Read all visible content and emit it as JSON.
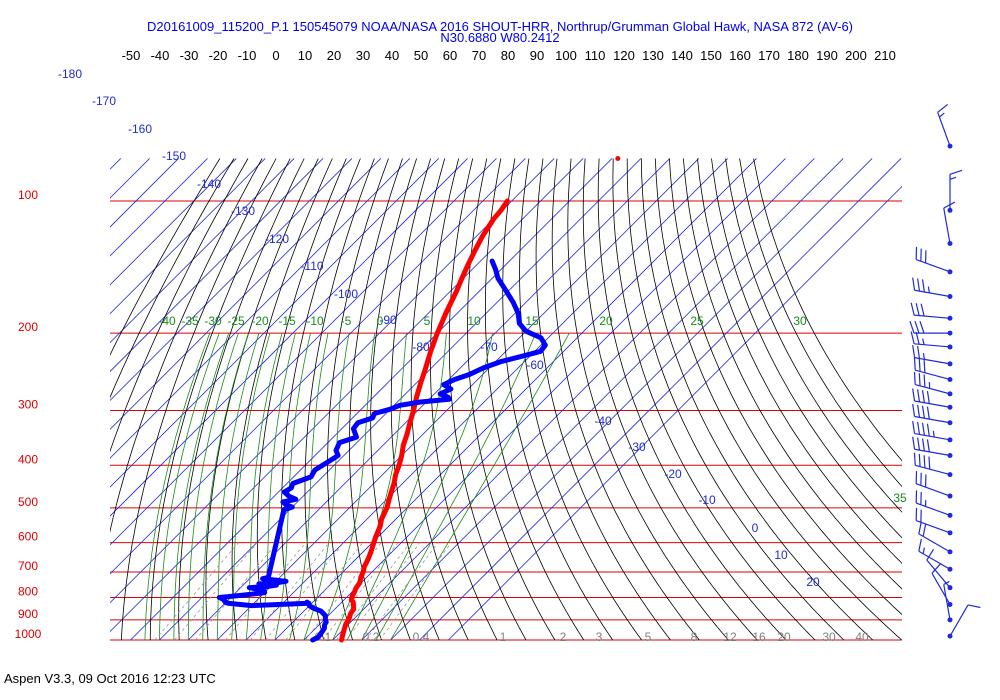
{
  "header": {
    "title": "D20161009_115200_P.1 150545079 NOAA/NASA 2016 SHOUT-HRR, Northrup/Grumman Global Hawk, NASA 872 (AV-6)",
    "location": "N30.6880 W80.2412"
  },
  "footer": {
    "version": "Aspen V3.3, 09 Oct 2016  12:23 UTC"
  },
  "chart_data": {
    "type": "skew-t",
    "title": "D20161009_115200_P.1 150545079 NOAA/NASA 2016 SHOUT-HRR, Northrup/Grumman Global Hawk, NASA 872 (AV-6)",
    "x_ticks": [
      "-50",
      "-40",
      "-30",
      "-20",
      "-10",
      "0",
      "10",
      "20",
      "30",
      "40",
      "50",
      "60",
      "70",
      "80",
      "90",
      "100",
      "110",
      "120",
      "130",
      "140",
      "150",
      "160",
      "170",
      "180",
      "190",
      "200",
      "210"
    ],
    "pressure_levels": [
      {
        "label": "100",
        "p": 100
      },
      {
        "label": "200",
        "p": 200
      },
      {
        "label": "300",
        "p": 300
      },
      {
        "label": "400",
        "p": 400
      },
      {
        "label": "500",
        "p": 500
      },
      {
        "label": "600",
        "p": 600
      },
      {
        "label": "700",
        "p": 700
      },
      {
        "label": "800",
        "p": 800
      },
      {
        "label": "900",
        "p": 900
      },
      {
        "label": "1000",
        "p": 1000
      }
    ],
    "isotherm_labels": [
      "-180",
      "-170",
      "-160",
      "-150",
      "-140",
      "-130",
      "-120",
      "-110",
      "-100",
      "-90",
      "-80",
      "-70",
      "-60",
      "-40",
      "-30",
      "-20",
      "-10",
      "0",
      "10",
      "20",
      "30"
    ],
    "dry_adiabat_labels": [
      "-40",
      "-35",
      "-30",
      "-25",
      "-20",
      "-15",
      "-10",
      "-5",
      "0",
      "5",
      "10",
      "15",
      "20",
      "25",
      "30",
      "35"
    ],
    "mixing_ratio_labels": [
      "0.1",
      "0.2",
      "0.4",
      "1",
      "2",
      "3",
      "5",
      "8",
      "12",
      "16",
      "20",
      "30",
      "40"
    ],
    "series": [
      {
        "color": "#ff0000",
        "points": [
          [
            1000,
            23
          ],
          [
            980,
            22
          ],
          [
            950,
            20.5
          ],
          [
            920,
            19
          ],
          [
            900,
            18.5
          ],
          [
            870,
            17
          ],
          [
            850,
            16.5
          ],
          [
            820,
            14
          ],
          [
            810,
            12.5
          ],
          [
            800,
            12
          ],
          [
            795,
            11.5
          ],
          [
            780,
            11
          ],
          [
            760,
            10
          ],
          [
            740,
            9.5
          ],
          [
            720,
            8
          ],
          [
            700,
            7
          ],
          [
            680,
            5.5
          ],
          [
            650,
            4
          ],
          [
            620,
            2
          ],
          [
            600,
            0.5
          ],
          [
            580,
            -1
          ],
          [
            550,
            -3
          ],
          [
            530,
            -5
          ],
          [
            500,
            -7
          ],
          [
            480,
            -9
          ],
          [
            460,
            -11
          ],
          [
            440,
            -13
          ],
          [
            420,
            -15.5
          ],
          [
            400,
            -17.5
          ],
          [
            380,
            -20
          ],
          [
            360,
            -23
          ],
          [
            340,
            -25.5
          ],
          [
            320,
            -28.5
          ],
          [
            300,
            -31.5
          ],
          [
            280,
            -35
          ],
          [
            260,
            -38.5
          ],
          [
            240,
            -42
          ],
          [
            220,
            -46
          ],
          [
            200,
            -50
          ],
          [
            180,
            -54
          ],
          [
            160,
            -58
          ],
          [
            150,
            -60.5
          ],
          [
            140,
            -63
          ],
          [
            130,
            -65.5
          ],
          [
            120,
            -68
          ],
          [
            110,
            -70
          ],
          [
            105,
            -70.5
          ],
          [
            100,
            -71.5
          ]
        ]
      },
      {
        "color": "#0000ff",
        "points": [
          [
            1000,
            13
          ],
          [
            985,
            14
          ],
          [
            960,
            13.5
          ],
          [
            940,
            13
          ],
          [
            925,
            12
          ],
          [
            910,
            11.5
          ],
          [
            900,
            10.5
          ],
          [
            880,
            9
          ],
          [
            860,
            6
          ],
          [
            845,
            2
          ],
          [
            835,
            0
          ],
          [
            825,
            -1
          ],
          [
            835,
            -20
          ],
          [
            825,
            -29
          ],
          [
            815,
            -31
          ],
          [
            822,
            -30
          ],
          [
            810,
            -31.5
          ],
          [
            800,
            -34
          ],
          [
            790,
            -26.5
          ],
          [
            780,
            -20
          ],
          [
            770,
            -21
          ],
          [
            760,
            -27
          ],
          [
            755,
            -21
          ],
          [
            750,
            -18.5
          ],
          [
            745,
            -25
          ],
          [
            740,
            -19
          ],
          [
            735,
            -16.5
          ],
          [
            730,
            -21
          ],
          [
            725,
            -25.5
          ],
          [
            720,
            -24
          ],
          [
            505,
            -42
          ],
          [
            498,
            -40
          ],
          [
            492,
            -43
          ],
          [
            485,
            -45
          ],
          [
            478,
            -41.5
          ],
          [
            470,
            -45
          ],
          [
            460,
            -48
          ],
          [
            450,
            -47
          ],
          [
            440,
            -48
          ],
          [
            425,
            -44
          ],
          [
            410,
            -45
          ],
          [
            395,
            -43.5
          ],
          [
            380,
            -42
          ],
          [
            370,
            -44.5
          ],
          [
            355,
            -46
          ],
          [
            345,
            -42
          ],
          [
            330,
            -46
          ],
          [
            320,
            -46.5
          ],
          [
            312,
            -43
          ],
          [
            305,
            -44
          ],
          [
            298,
            -40
          ],
          [
            292,
            -38
          ],
          [
            287,
            -32
          ],
          [
            283,
            -23
          ],
          [
            280,
            -24
          ],
          [
            275,
            -28
          ],
          [
            268,
            -26
          ],
          [
            262,
            -30
          ],
          [
            255,
            -28
          ],
          [
            248,
            -24.5
          ],
          [
            240,
            -22
          ],
          [
            232,
            -18
          ],
          [
            225,
            -12
          ],
          [
            220,
            -8
          ],
          [
            213,
            -8.5
          ],
          [
            205,
            -12.5
          ],
          [
            198,
            -20
          ],
          [
            190,
            -25
          ],
          [
            180,
            -29
          ],
          [
            170,
            -34.5
          ],
          [
            160,
            -41
          ],
          [
            150,
            -48
          ],
          [
            143,
            -52
          ],
          [
            137,
            -56
          ]
        ]
      }
    ],
    "isolated_points": [
      {
        "color": "#ff0000",
        "p": 80,
        "t": -48
      },
      {
        "color": "#0000ff",
        "p": 820,
        "t": -2
      }
    ],
    "wind_barbs": [
      {
        "p": 75,
        "dir": 340,
        "spd": 15
      },
      {
        "p": 105,
        "dir": 360,
        "spd": 15
      },
      {
        "p": 125,
        "dir": 350,
        "spd": 10
      },
      {
        "p": 145,
        "dir": 290,
        "spd": 30
      },
      {
        "p": 165,
        "dir": 280,
        "spd": 35
      },
      {
        "p": 185,
        "dir": 275,
        "spd": 30
      },
      {
        "p": 200,
        "dir": 270,
        "spd": 30
      },
      {
        "p": 215,
        "dir": 275,
        "spd": 25
      },
      {
        "p": 235,
        "dir": 280,
        "spd": 25
      },
      {
        "p": 255,
        "dir": 285,
        "spd": 30
      },
      {
        "p": 275,
        "dir": 285,
        "spd": 35
      },
      {
        "p": 295,
        "dir": 280,
        "spd": 40
      },
      {
        "p": 320,
        "dir": 280,
        "spd": 40
      },
      {
        "p": 350,
        "dir": 280,
        "spd": 45
      },
      {
        "p": 380,
        "dir": 280,
        "spd": 40
      },
      {
        "p": 420,
        "dir": 285,
        "spd": 40
      },
      {
        "p": 470,
        "dir": 290,
        "spd": 30
      },
      {
        "p": 520,
        "dir": 290,
        "spd": 25
      },
      {
        "p": 570,
        "dir": 290,
        "spd": 20
      },
      {
        "p": 630,
        "dir": 300,
        "spd": 20
      },
      {
        "p": 690,
        "dir": 300,
        "spd": 15
      },
      {
        "p": 760,
        "dir": 320,
        "spd": 10
      },
      {
        "p": 830,
        "dir": 330,
        "spd": 10
      },
      {
        "p": 900,
        "dir": 350,
        "spd": 5
      },
      {
        "p": 980,
        "dir": 30,
        "spd": 10
      }
    ]
  }
}
